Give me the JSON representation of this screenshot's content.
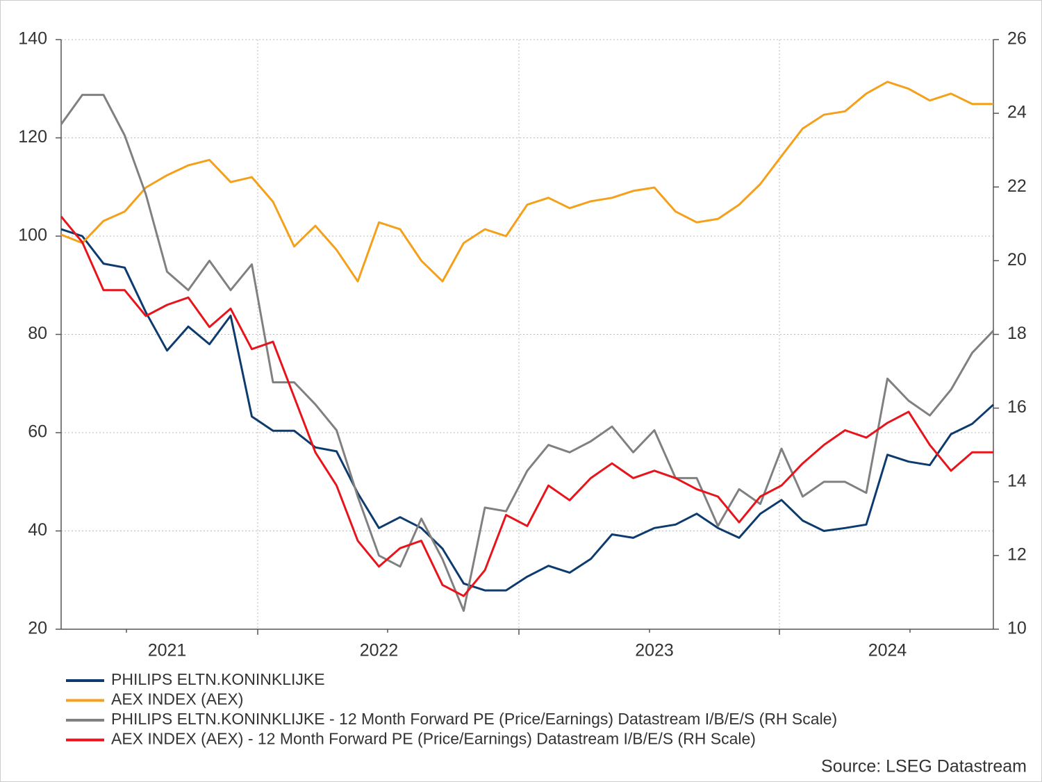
{
  "chart_data": {
    "type": "line",
    "categories": [
      null,
      null,
      null,
      null,
      null,
      "2021",
      null,
      null,
      null,
      null,
      null,
      null,
      null,
      null,
      null,
      "2022",
      null,
      null,
      null,
      null,
      null,
      null,
      null,
      null,
      null,
      null,
      null,
      null,
      "2023",
      null,
      null,
      null,
      null,
      null,
      null,
      null,
      null,
      null,
      null,
      "2024",
      null,
      null,
      null,
      null,
      null
    ],
    "ylim": [
      20,
      140
    ],
    "yticks": [
      20,
      40,
      60,
      80,
      100,
      120,
      140
    ],
    "y2lim": [
      10,
      26
    ],
    "y2ticks": [
      10,
      12,
      14,
      16,
      18,
      20,
      22,
      24,
      26
    ],
    "grid": true,
    "series": [
      {
        "name": "PHILIPS ELTN.KONINKLIJKE",
        "color": "#0d3b6e",
        "values": [
          101.4,
          100,
          94.4,
          93.6,
          84.5,
          76.7,
          81.6,
          78,
          83.8,
          63.3,
          60.4,
          60.4,
          57,
          56.2,
          47.7,
          40.6,
          42.8,
          40.6,
          36.4,
          29.3,
          27.9,
          27.9,
          30.7,
          32.9,
          31.5,
          34.3,
          39.3,
          38.6,
          40.6,
          41.3,
          43.5,
          40.6,
          38.6,
          43.5,
          46.3,
          42.1,
          40,
          40.6,
          41.3,
          55.5,
          54.1,
          53.4,
          59.7,
          61.8,
          65.7
        ]
      },
      {
        "name": "AEX INDEX (AEX)",
        "color": "#f5a01a",
        "values": [
          100.3,
          98.6,
          103.1,
          105,
          109.9,
          112.4,
          114.4,
          115.5,
          111,
          112,
          107,
          97.9,
          102.1,
          97.2,
          90.8,
          102.8,
          101.4,
          95,
          90.8,
          98.6,
          101.4,
          100,
          106.4,
          107.8,
          105.7,
          107.1,
          107.8,
          109.2,
          109.9,
          105,
          102.8,
          103.5,
          106.4,
          110.6,
          116.3,
          121.9,
          124.7,
          125.4,
          129,
          131.4,
          130,
          127.6,
          129,
          126.9,
          126.9
        ]
      },
      {
        "name": "PHILIPS ELTN.KONINKLIJKE - 12 Month Forward PE (Price/Earnings) Datastream I/B/E/S (RH Scale)",
        "color": "#808080",
        "axis": "y2",
        "values": [
          23.7,
          24.5,
          24.5,
          23.4,
          21.8,
          19.7,
          19.2,
          20,
          19.2,
          19.9,
          16.7,
          16.7,
          16.1,
          15.4,
          13.6,
          12,
          11.7,
          13,
          11.9,
          10.5,
          13.3,
          13.2,
          14.3,
          15,
          14.8,
          15.1,
          15.5,
          14.8,
          15.4,
          14.1,
          14.1,
          12.8,
          13.8,
          13.4,
          14.9,
          13.6,
          14,
          14,
          13.7,
          16.8,
          16.2,
          15.8,
          16.5,
          17.5,
          18.1
        ]
      },
      {
        "name": "AEX INDEX (AEX) - 12 Month Forward PE (Price/Earnings) Datastream I/B/E/S (RH Scale)",
        "color": "#e8141b",
        "axis": "y2",
        "values": [
          21.2,
          20.5,
          19.2,
          19.2,
          18.5,
          18.8,
          19,
          18.2,
          18.7,
          17.6,
          17.8,
          16.3,
          14.8,
          13.9,
          12.4,
          11.7,
          12.2,
          12.4,
          11.2,
          10.9,
          11.6,
          13.1,
          12.8,
          13.9,
          13.5,
          14.1,
          14.5,
          14.1,
          14.3,
          14.1,
          13.8,
          13.6,
          12.9,
          13.6,
          13.9,
          14.5,
          15,
          15.4,
          15.2,
          15.6,
          15.9,
          15,
          14.3,
          14.8,
          14.8
        ]
      }
    ],
    "source": "Source: LSEG Datastream"
  }
}
